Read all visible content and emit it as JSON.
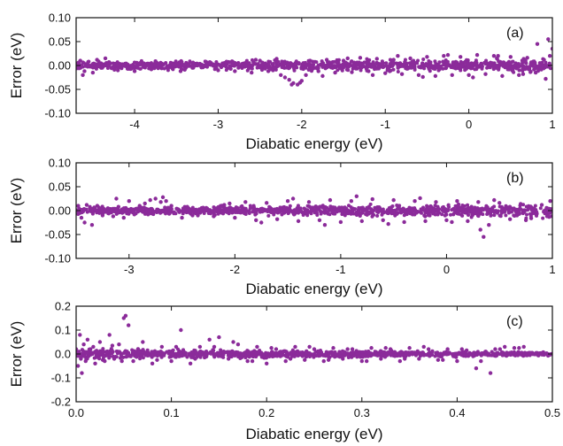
{
  "colors": {
    "marker": "#8B2B9A",
    "axis": "#111111"
  },
  "chart_data": [
    {
      "type": "scatter",
      "panel_label": "(a)",
      "xlabel": "Diabatic energy (eV)",
      "ylabel": "Error (eV)",
      "xlim": [
        -4.7,
        1.0
      ],
      "ylim": [
        -0.1,
        0.1
      ],
      "xticks": [
        -4,
        -3,
        -2,
        -1,
        0,
        1
      ],
      "xtick_labels": [
        "-4",
        "-3",
        "-2",
        "-1",
        "0",
        "1"
      ],
      "yticks": [
        -0.1,
        -0.05,
        0.0,
        0.05,
        0.1
      ],
      "ytick_labels": [
        "-0.10",
        "-0.05",
        "0.00",
        "0.05",
        "0.10"
      ],
      "grid": false,
      "series": [
        {
          "x": [
            -4.65,
            -4.6,
            -4.55,
            -4.5,
            -4.45,
            -4.4,
            -4.3,
            -4.2,
            -4.1,
            -4.0,
            -3.9,
            -3.8,
            -3.7,
            -3.6,
            -3.5,
            -3.4,
            -3.3,
            -3.2,
            -3.1,
            -3.0,
            -2.9,
            -2.8,
            -2.7,
            -2.6,
            -2.5,
            -2.4,
            -2.3,
            -2.25,
            -2.2,
            -2.15,
            -2.1,
            -2.05,
            -2.0,
            -1.95,
            -1.9,
            -1.8,
            -1.7,
            -1.6,
            -1.5,
            -1.4,
            -1.3,
            -1.2,
            -1.1,
            -1.0,
            -0.9,
            -0.8,
            -0.7,
            -0.6,
            -0.5,
            -0.4,
            -0.3,
            -0.2,
            -0.1,
            0.0,
            0.1,
            0.2,
            0.3,
            0.4,
            0.5,
            0.6,
            0.7,
            0.8,
            0.9,
            0.95,
            1.0,
            -4.62,
            -4.35,
            -4.05,
            -3.75,
            -3.45,
            -3.15,
            -2.85,
            -2.55,
            -2.3,
            -2.12,
            -2.02,
            -1.98,
            -1.75,
            -1.45,
            -1.15,
            -0.85,
            -0.55,
            -0.25,
            0.05,
            0.35,
            0.65,
            0.82,
            0.92,
            0.97
          ],
          "y": [
            0.01,
            -0.012,
            0.008,
            -0.015,
            0.012,
            -0.005,
            0.006,
            -0.01,
            0.004,
            -0.012,
            0.005,
            -0.008,
            0.003,
            -0.006,
            0.004,
            -0.009,
            0.006,
            -0.004,
            0.007,
            -0.01,
            0.008,
            -0.012,
            0.004,
            -0.015,
            0.01,
            -0.012,
            0.014,
            -0.02,
            -0.025,
            -0.03,
            -0.037,
            -0.04,
            -0.032,
            -0.02,
            0.01,
            -0.012,
            0.012,
            -0.015,
            0.01,
            -0.014,
            0.016,
            -0.012,
            0.014,
            -0.016,
            0.012,
            -0.018,
            0.015,
            -0.02,
            0.018,
            -0.022,
            0.02,
            -0.02,
            0.018,
            -0.02,
            0.022,
            -0.018,
            0.02,
            -0.022,
            0.018,
            -0.02,
            0.016,
            -0.015,
            0.012,
            0.055,
            0.035,
            -0.02,
            0.015,
            -0.006,
            0.009,
            -0.012,
            0.008,
            -0.007,
            0.012,
            0.01,
            -0.04,
            -0.036,
            0.005,
            -0.022,
            0.015,
            -0.02,
            0.02,
            -0.024,
            0.022,
            -0.025,
            0.02,
            -0.018,
            0.045,
            -0.028,
            0.02
          ]
        }
      ]
    },
    {
      "type": "scatter",
      "panel_label": "(b)",
      "xlabel": "Diabatic energy (eV)",
      "ylabel": "Error (eV)",
      "xlim": [
        -3.5,
        1.0
      ],
      "ylim": [
        -0.1,
        0.1
      ],
      "xticks": [
        -3,
        -2,
        -1,
        0,
        1
      ],
      "xtick_labels": [
        "-3",
        "-2",
        "-1",
        "0",
        "1"
      ],
      "yticks": [
        -0.1,
        -0.05,
        0.0,
        0.05,
        0.1
      ],
      "ytick_labels": [
        "-0.10",
        "-0.05",
        "0.00",
        "0.05",
        "0.10"
      ],
      "grid": false,
      "series": [
        {
          "x": [
            -3.48,
            -3.45,
            -3.4,
            -3.35,
            -3.3,
            -3.25,
            -3.2,
            -3.15,
            -3.1,
            -3.05,
            -3.0,
            -2.95,
            -2.9,
            -2.85,
            -2.8,
            -2.75,
            -2.7,
            -2.65,
            -2.6,
            -2.5,
            -2.45,
            -2.4,
            -2.3,
            -2.2,
            -2.1,
            -2.0,
            -1.9,
            -1.8,
            -1.7,
            -1.6,
            -1.5,
            -1.4,
            -1.3,
            -1.2,
            -1.1,
            -1.0,
            -0.9,
            -0.8,
            -0.7,
            -0.6,
            -0.5,
            -0.4,
            -0.3,
            -0.2,
            -0.1,
            0.0,
            0.1,
            0.2,
            0.3,
            0.35,
            0.4,
            0.5,
            0.6,
            0.7,
            0.8,
            0.9,
            0.98,
            -3.42,
            -3.12,
            -2.82,
            -2.68,
            -2.55,
            -2.35,
            -2.05,
            -1.75,
            -1.45,
            -1.15,
            -0.85,
            -0.55,
            -0.25,
            0.05,
            0.32,
            0.45,
            0.75,
            0.95
          ],
          "y": [
            0.01,
            -0.015,
            0.012,
            -0.03,
            0.01,
            -0.01,
            0.005,
            -0.012,
            0.008,
            -0.015,
            0.02,
            -0.008,
            0.01,
            0.015,
            0.022,
            0.025,
            0.018,
            0.02,
            0.01,
            -0.015,
            0.008,
            -0.01,
            0.006,
            -0.012,
            0.012,
            -0.015,
            0.018,
            -0.02,
            0.016,
            -0.018,
            0.02,
            -0.022,
            0.018,
            -0.02,
            0.022,
            -0.024,
            0.02,
            -0.022,
            0.024,
            -0.02,
            0.022,
            -0.024,
            0.02,
            -0.022,
            0.018,
            -0.02,
            0.02,
            -0.022,
            0.018,
            -0.055,
            -0.03,
            0.016,
            -0.018,
            0.014,
            -0.016,
            0.012,
            0.02,
            -0.025,
            0.025,
            -0.008,
            0.028,
            0.004,
            -0.01,
            0.015,
            -0.025,
            0.025,
            -0.03,
            0.03,
            -0.028,
            0.026,
            -0.024,
            -0.04,
            0.022,
            -0.02,
            -0.012
          ]
        }
      ]
    },
    {
      "type": "scatter",
      "panel_label": "(c)",
      "xlabel": "Diabatic energy (eV)",
      "ylabel": "Error (eV)",
      "xlim": [
        0.0,
        0.5
      ],
      "ylim": [
        -0.2,
        0.2
      ],
      "xticks": [
        0.0,
        0.1,
        0.2,
        0.3,
        0.4,
        0.5
      ],
      "xtick_labels": [
        "0.0",
        "0.1",
        "0.2",
        "0.3",
        "0.4",
        "0.5"
      ],
      "yticks": [
        -0.2,
        -0.1,
        0.0,
        0.1,
        0.2
      ],
      "ytick_labels": [
        "-0.2",
        "-0.1",
        "0.0",
        "0.1",
        "0.2"
      ],
      "grid": false,
      "series": [
        {
          "x": [
            0.0,
            0.002,
            0.004,
            0.006,
            0.008,
            0.01,
            0.012,
            0.015,
            0.02,
            0.025,
            0.03,
            0.035,
            0.04,
            0.045,
            0.05,
            0.052,
            0.055,
            0.06,
            0.07,
            0.08,
            0.09,
            0.1,
            0.11,
            0.12,
            0.13,
            0.14,
            0.15,
            0.16,
            0.17,
            0.18,
            0.19,
            0.2,
            0.21,
            0.22,
            0.23,
            0.24,
            0.25,
            0.26,
            0.27,
            0.28,
            0.29,
            0.3,
            0.31,
            0.32,
            0.33,
            0.34,
            0.35,
            0.36,
            0.37,
            0.38,
            0.39,
            0.4,
            0.41,
            0.42,
            0.43,
            0.435,
            0.44,
            0.45,
            0.46,
            0.47,
            0.005,
            0.018,
            0.028,
            0.038,
            0.048,
            0.065,
            0.085,
            0.105,
            0.125,
            0.145,
            0.165,
            0.185,
            0.205,
            0.225,
            0.245,
            0.265,
            0.285,
            0.305,
            0.325,
            0.345,
            0.365,
            0.385,
            0.405,
            0.425,
            0.445,
            0.465
          ],
          "y": [
            0.02,
            -0.05,
            0.08,
            -0.08,
            0.04,
            -0.03,
            0.06,
            0.02,
            -0.04,
            0.05,
            -0.03,
            0.08,
            -0.02,
            0.04,
            0.15,
            0.16,
            0.12,
            -0.03,
            0.05,
            -0.04,
            0.03,
            -0.03,
            0.1,
            -0.04,
            0.03,
            0.06,
            0.07,
            -0.02,
            0.04,
            -0.03,
            0.03,
            -0.04,
            0.02,
            -0.03,
            0.03,
            -0.025,
            0.02,
            -0.03,
            0.025,
            -0.02,
            0.02,
            -0.03,
            0.025,
            -0.02,
            0.02,
            -0.03,
            0.025,
            -0.02,
            0.02,
            -0.025,
            0.02,
            -0.03,
            0.015,
            -0.06,
            0.01,
            -0.08,
            0.02,
            0.03,
            0.025,
            0.03,
            -0.02,
            0.03,
            -0.025,
            0.035,
            -0.03,
            0.02,
            -0.025,
            0.03,
            -0.02,
            0.03,
            0.05,
            -0.03,
            0.025,
            -0.02,
            0.03,
            -0.025,
            0.02,
            -0.03,
            0.025,
            -0.02,
            0.03,
            -0.025,
            0.02,
            -0.03,
            0.02,
            0.025
          ]
        }
      ]
    }
  ]
}
